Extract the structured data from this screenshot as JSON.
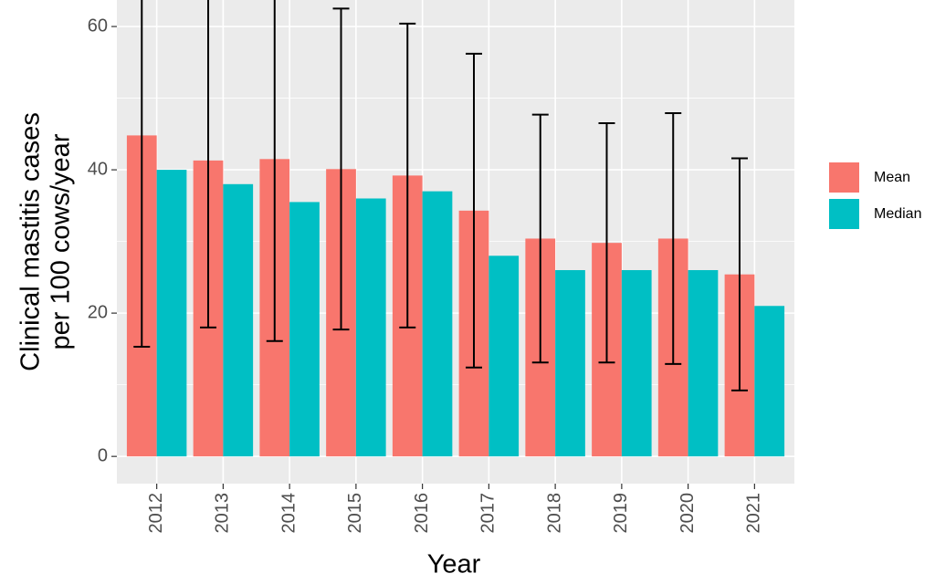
{
  "chart_data": {
    "type": "bar",
    "x_label": "Year",
    "y_label": [
      "Clinical mastitis cases",
      "per 100 cows/year"
    ],
    "categories": [
      "2012",
      "2013",
      "2014",
      "2015",
      "2016",
      "2017",
      "2018",
      "2019",
      "2020",
      "2021"
    ],
    "series": [
      {
        "name": "Mean",
        "color": "#f8766d",
        "values": [
          44.8,
          41.3,
          41.5,
          40.1,
          39.2,
          34.3,
          30.4,
          29.8,
          30.4,
          25.4
        ],
        "errors": [
          29.5,
          23.3,
          25.4,
          22.4,
          21.2,
          21.9,
          17.3,
          16.7,
          17.5,
          16.2
        ]
      },
      {
        "name": "Median",
        "color": "#00bfc4",
        "values": [
          40,
          38,
          35.5,
          36,
          37,
          28,
          26,
          26,
          26,
          21
        ]
      }
    ],
    "ylim": [
      -3.8,
      63.7
    ],
    "yticks": [
      0,
      20,
      40,
      60
    ],
    "y_minor_gridlines": [
      10,
      30,
      50
    ],
    "grid": true,
    "legend": "right"
  }
}
